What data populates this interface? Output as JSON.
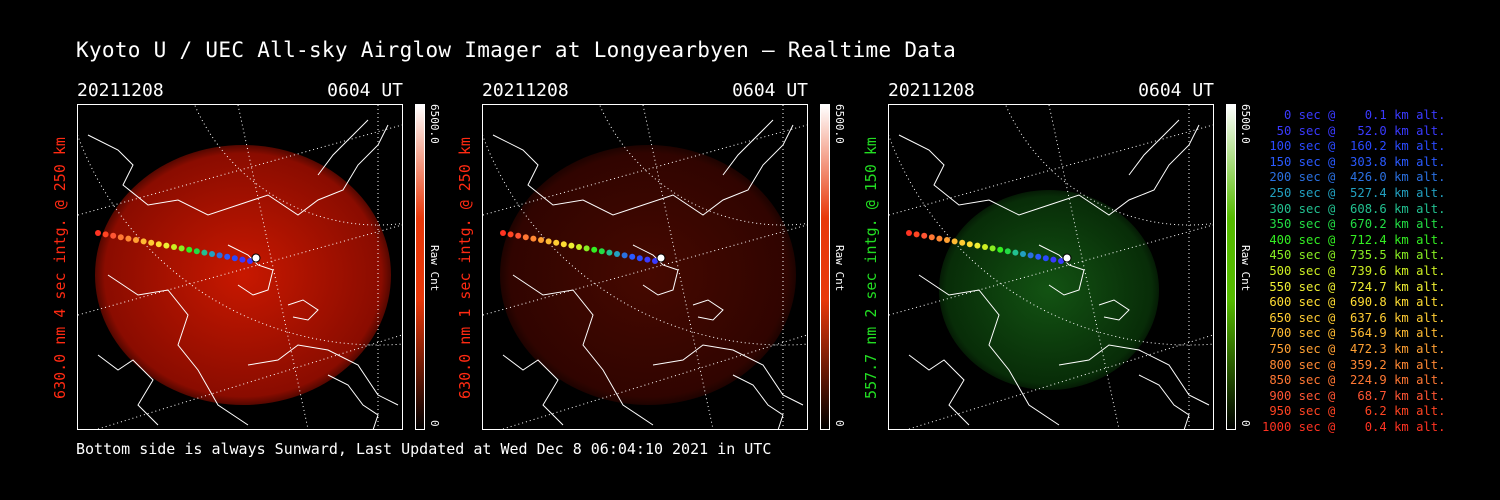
{
  "title": "Kyoto U / UEC All-sky Airglow Imager at Longyearbyen — Realtime Data",
  "footer": "Bottom side is always Sunward, Last Updated at Wed Dec  8 06:04:10 2021 in UTC",
  "panels": [
    {
      "date": "20211208",
      "time": "0604 UT",
      "side_label": "630.0 nm 4 sec intg. @ 250 km",
      "side_color": "#ff2a12",
      "cbar_max": "6500.0",
      "cbar_unit": "Raw Cnt",
      "cbar_min": "0",
      "cbar_color": "#e8380a",
      "glow": "red",
      "intensity": 1.0
    },
    {
      "date": "20211208",
      "time": "0604 UT",
      "side_label": "630.0 nm 1 sec intg. @ 250 km",
      "side_color": "#ff2a12",
      "cbar_max": "6500.0",
      "cbar_unit": "Raw Cnt",
      "cbar_min": "0",
      "cbar_color": "#e8380a",
      "glow": "red",
      "intensity": 0.35
    },
    {
      "date": "20211208",
      "time": "0604 UT",
      "side_label": "557.7 nm 2 sec intg. @ 150 km",
      "side_color": "#22dd22",
      "cbar_max": "6500.0",
      "cbar_unit": "Raw Cnt",
      "cbar_min": "0",
      "cbar_color": "#55bb00",
      "glow": "green",
      "intensity": 0.6
    }
  ],
  "legend": [
    {
      "text": "   0 sec @    0.1 km alt.",
      "color": "#3a3aff"
    },
    {
      "text": "  50 sec @   52.0 km alt.",
      "color": "#3a3aff"
    },
    {
      "text": " 100 sec @  160.2 km alt.",
      "color": "#2a4aff"
    },
    {
      "text": " 150 sec @  303.8 km alt.",
      "color": "#2a5aff"
    },
    {
      "text": " 200 sec @  426.0 km alt.",
      "color": "#2a70e0"
    },
    {
      "text": " 250 sec @  527.4 km alt.",
      "color": "#22a0c0"
    },
    {
      "text": " 300 sec @  608.6 km alt.",
      "color": "#22c090"
    },
    {
      "text": " 350 sec @  670.2 km alt.",
      "color": "#22dd44"
    },
    {
      "text": " 400 sec @  712.4 km alt.",
      "color": "#33ee22"
    },
    {
      "text": " 450 sec @  735.5 km alt.",
      "color": "#88ee22"
    },
    {
      "text": " 500 sec @  739.6 km alt.",
      "color": "#ccee22"
    },
    {
      "text": " 550 sec @  724.7 km alt.",
      "color": "#eeee33"
    },
    {
      "text": " 600 sec @  690.8 km alt.",
      "color": "#ffdd33"
    },
    {
      "text": " 650 sec @  637.6 km alt.",
      "color": "#ffcc33"
    },
    {
      "text": " 700 sec @  564.9 km alt.",
      "color": "#ffbb33"
    },
    {
      "text": " 750 sec @  472.3 km alt.",
      "color": "#ffa033"
    },
    {
      "text": " 800 sec @  359.2 km alt.",
      "color": "#ff8833"
    },
    {
      "text": " 850 sec @  224.9 km alt.",
      "color": "#ff7733"
    },
    {
      "text": " 900 sec @   68.7 km alt.",
      "color": "#ff5533"
    },
    {
      "text": " 950 sec @    6.2 km alt.",
      "color": "#ff4422"
    },
    {
      "text": "1000 sec @    0.4 km alt.",
      "color": "#ff3322"
    }
  ]
}
